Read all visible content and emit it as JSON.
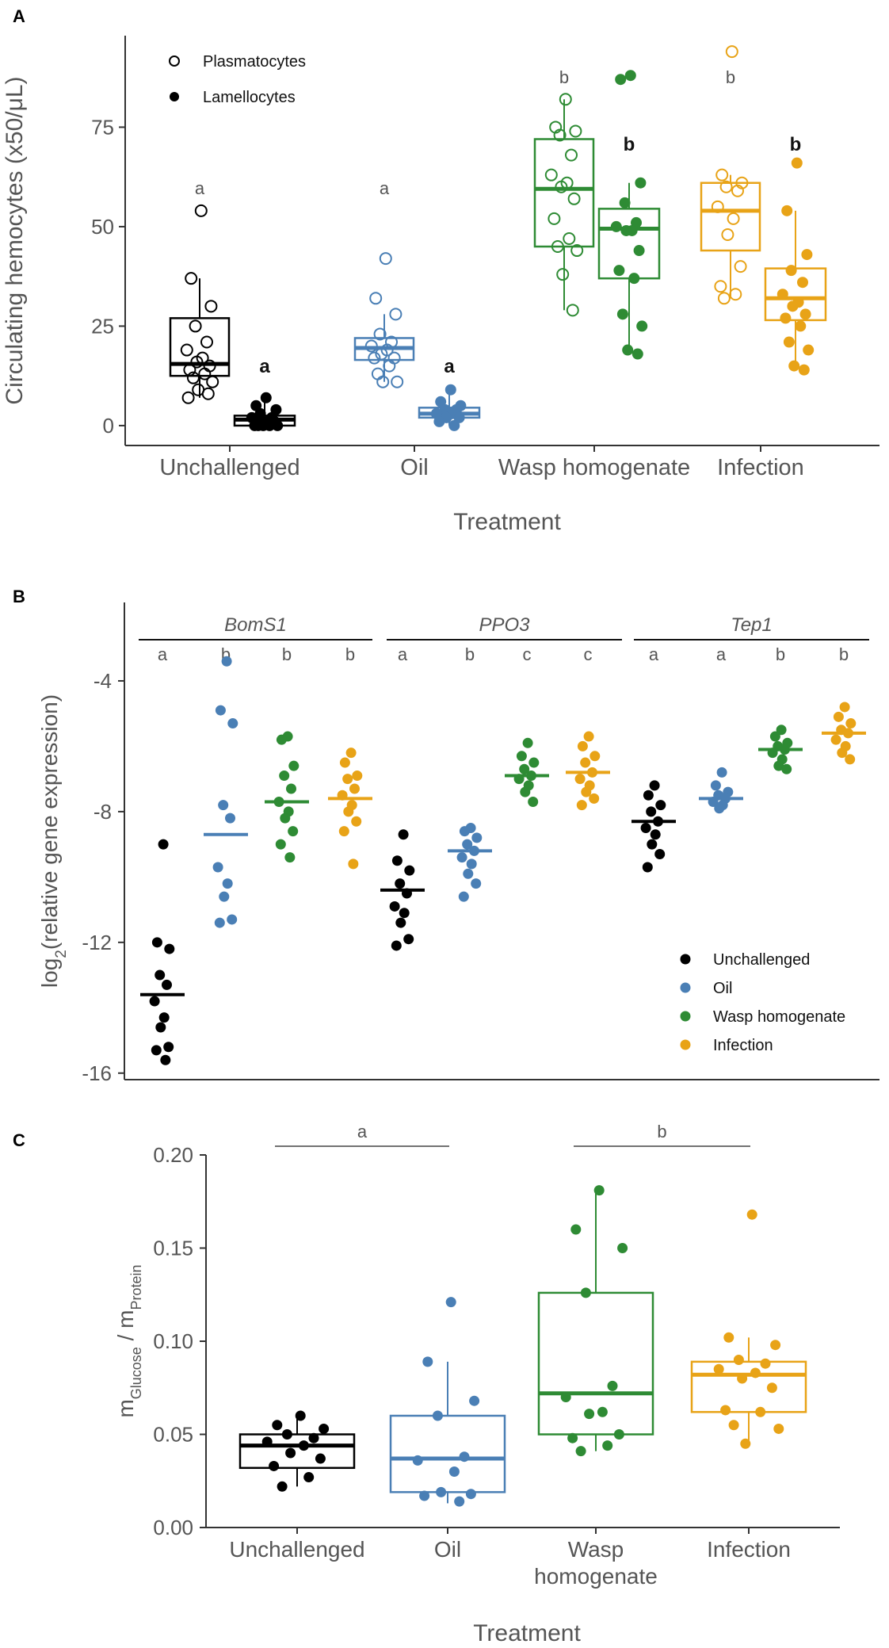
{
  "figure": {
    "panel_labels": [
      "A",
      "B",
      "C"
    ]
  },
  "colors": {
    "Unchallenged": "#000000",
    "Oil": "#4a7fb5",
    "Wasp homogenate": "#2e8b34",
    "Infection": "#e8a317"
  },
  "chart_data": [
    {
      "panel": "A",
      "type": "box",
      "ylabel": "Circulating hemocytes (x50/μL)",
      "xlabel": "Treatment",
      "ylim": [
        -5,
        98
      ],
      "yticks": [
        0,
        25,
        50,
        75
      ],
      "categories": [
        "Unchallenged",
        "Oil",
        "Wasp homogenate",
        "Infection"
      ],
      "legend": {
        "position": "top-left",
        "entries": [
          "Plasmatocytes",
          "Lamellocytes"
        ]
      },
      "series": [
        {
          "name": "Plasmatocytes",
          "marker": "open-circle",
          "groups": [
            {
              "category": "Unchallenged",
              "q1": 12.5,
              "median": 15.5,
              "q3": 27,
              "whisker_low": 7,
              "whisker_high": 37,
              "letter": "a",
              "points": [
                54,
                37,
                30,
                25,
                21,
                19,
                17,
                16,
                15,
                14,
                13,
                12,
                11,
                9,
                8,
                7
              ]
            },
            {
              "category": "Oil",
              "q1": 16.5,
              "median": 19.5,
              "q3": 22,
              "whisker_low": 11,
              "whisker_high": 28,
              "letter": "a",
              "points": [
                42,
                32,
                28,
                23,
                21,
                20,
                19,
                18,
                17,
                17,
                15,
                13,
                11,
                11
              ]
            },
            {
              "category": "Wasp homogenate",
              "q1": 45,
              "median": 59.5,
              "q3": 72,
              "whisker_low": 29,
              "whisker_high": 82,
              "letter": "b",
              "points": [
                82,
                75,
                74,
                73,
                68,
                63,
                61,
                60,
                57,
                52,
                47,
                45,
                44,
                38,
                29
              ]
            },
            {
              "category": "Infection",
              "q1": 44,
              "median": 54,
              "q3": 61,
              "whisker_low": 32,
              "whisker_high": 63,
              "letter": "b",
              "points": [
                94,
                63,
                61,
                60,
                59,
                55,
                52,
                48,
                40,
                35,
                33,
                32
              ]
            }
          ]
        },
        {
          "name": "Lamellocytes",
          "marker": "filled-circle",
          "groups": [
            {
              "category": "Unchallenged",
              "q1": 0,
              "median": 1.5,
              "q3": 2.5,
              "whisker_low": 0,
              "whisker_high": 7,
              "letter": "a",
              "points": [
                7,
                5,
                4,
                3,
                2,
                2,
                1,
                1,
                1,
                0,
                0,
                0,
                0,
                0
              ]
            },
            {
              "category": "Oil",
              "q1": 2,
              "median": 3,
              "q3": 4.5,
              "whisker_low": 0,
              "whisker_high": 9,
              "letter": "a",
              "points": [
                9,
                6,
                5,
                4,
                4,
                3,
                3,
                2,
                2,
                1,
                0
              ]
            },
            {
              "category": "Wasp homogenate",
              "q1": 37,
              "median": 49.5,
              "q3": 54.5,
              "whisker_low": 18,
              "whisker_high": 61,
              "letter": "b",
              "points": [
                88,
                87,
                61,
                56,
                51,
                50,
                49,
                49,
                44,
                39,
                37,
                28,
                25,
                19,
                18
              ]
            },
            {
              "category": "Infection",
              "q1": 26.5,
              "median": 32,
              "q3": 39.5,
              "whisker_low": 14,
              "whisker_high": 54,
              "letter": "b",
              "points": [
                66,
                54,
                43,
                39,
                36,
                33,
                31,
                30,
                28,
                27,
                25,
                21,
                19,
                15,
                14
              ]
            }
          ]
        }
      ]
    },
    {
      "panel": "B",
      "type": "scatter",
      "ylabel_main": "log",
      "ylabel_sub": "2",
      "ylabel_rest": "(relative gene expression)",
      "ylim": [
        -16.2,
        -1.6
      ],
      "yticks": [
        -4,
        -8,
        -12,
        -16
      ],
      "genes": [
        "BomS1",
        "PPO3",
        "Tep1"
      ],
      "legend": {
        "position": "bottom-right",
        "entries": [
          "Unchallenged",
          "Oil",
          "Wasp homogenate",
          "Infection"
        ]
      },
      "groups": [
        {
          "gene": "BomS1",
          "treatment": "Unchallenged",
          "mean": -13.6,
          "letter": "a",
          "points": [
            -9.0,
            -12.0,
            -12.2,
            -13.0,
            -13.3,
            -13.8,
            -14.3,
            -14.6,
            -15.2,
            -15.3,
            -15.6
          ]
        },
        {
          "gene": "BomS1",
          "treatment": "Oil",
          "mean": -8.7,
          "letter": "b",
          "points": [
            -3.4,
            -4.9,
            -5.3,
            -7.8,
            -8.2,
            -9.7,
            -10.2,
            -10.6,
            -11.3,
            -11.4
          ]
        },
        {
          "gene": "BomS1",
          "treatment": "Wasp homogenate",
          "mean": -7.7,
          "letter": "b",
          "points": [
            -5.7,
            -5.8,
            -6.6,
            -6.9,
            -7.3,
            -7.7,
            -8.0,
            -8.2,
            -8.6,
            -9.0,
            -9.4
          ]
        },
        {
          "gene": "BomS1",
          "treatment": "Infection",
          "mean": -7.6,
          "letter": "b",
          "points": [
            -6.2,
            -6.5,
            -6.9,
            -7.0,
            -7.3,
            -7.5,
            -7.8,
            -8.0,
            -8.3,
            -8.6,
            -9.6
          ]
        },
        {
          "gene": "PPO3",
          "treatment": "Unchallenged",
          "mean": -10.4,
          "letter": "a",
          "points": [
            -8.7,
            -9.5,
            -9.8,
            -10.2,
            -10.5,
            -10.9,
            -11.1,
            -11.4,
            -11.9,
            -12.1
          ]
        },
        {
          "gene": "PPO3",
          "treatment": "Oil",
          "mean": -9.2,
          "letter": "b",
          "points": [
            -8.5,
            -8.6,
            -8.8,
            -9.0,
            -9.2,
            -9.4,
            -9.6,
            -9.9,
            -10.2,
            -10.6
          ]
        },
        {
          "gene": "PPO3",
          "treatment": "Wasp homogenate",
          "mean": -6.9,
          "letter": "c",
          "points": [
            -5.9,
            -6.3,
            -6.5,
            -6.7,
            -6.9,
            -7.0,
            -7.2,
            -7.4,
            -7.7
          ]
        },
        {
          "gene": "PPO3",
          "treatment": "Infection",
          "mean": -6.8,
          "letter": "c",
          "points": [
            -5.7,
            -6.0,
            -6.3,
            -6.5,
            -6.8,
            -7.0,
            -7.2,
            -7.4,
            -7.6,
            -7.8
          ]
        },
        {
          "gene": "Tep1",
          "treatment": "Unchallenged",
          "mean": -8.3,
          "letter": "a",
          "points": [
            -7.2,
            -7.5,
            -7.8,
            -8.0,
            -8.3,
            -8.5,
            -8.7,
            -9.0,
            -9.3,
            -9.7
          ]
        },
        {
          "gene": "Tep1",
          "treatment": "Oil",
          "mean": -7.6,
          "letter": "a",
          "points": [
            -6.8,
            -7.2,
            -7.4,
            -7.5,
            -7.6,
            -7.7,
            -7.8,
            -7.9
          ]
        },
        {
          "gene": "Tep1",
          "treatment": "Wasp homogenate",
          "mean": -6.1,
          "letter": "b",
          "points": [
            -5.5,
            -5.7,
            -5.9,
            -6.0,
            -6.1,
            -6.2,
            -6.4,
            -6.6,
            -6.7
          ]
        },
        {
          "gene": "Tep1",
          "treatment": "Infection",
          "mean": -5.6,
          "letter": "b",
          "points": [
            -4.8,
            -5.1,
            -5.3,
            -5.5,
            -5.6,
            -5.8,
            -6.0,
            -6.2,
            -6.4
          ]
        }
      ]
    },
    {
      "panel": "C",
      "type": "box",
      "ylabel_main": "m",
      "ylabel_sub1": "Glucose",
      "ylabel_mid": " / m",
      "ylabel_sub2": "Protein",
      "xlabel": "Treatment",
      "ylim": [
        0,
        0.2
      ],
      "yticks": [
        "0.00",
        "0.05",
        "0.10",
        "0.15",
        "0.20"
      ],
      "categories": [
        {
          "label1": "Unchallenged",
          "label2": ""
        },
        {
          "label1": "Oil",
          "label2": ""
        },
        {
          "label1": "Wasp",
          "label2": "homogenate"
        },
        {
          "label1": "Infection",
          "label2": ""
        }
      ],
      "brackets": [
        {
          "from": 0,
          "to": 1,
          "letter": "a"
        },
        {
          "from": 2,
          "to": 3,
          "letter": "b"
        }
      ],
      "groups": [
        {
          "category": "Unchallenged",
          "q1": 0.032,
          "median": 0.044,
          "q3": 0.05,
          "whisker_low": 0.022,
          "whisker_high": 0.06,
          "points": [
            0.06,
            0.055,
            0.053,
            0.05,
            0.048,
            0.046,
            0.044,
            0.04,
            0.037,
            0.033,
            0.027,
            0.022
          ]
        },
        {
          "category": "Oil",
          "q1": 0.019,
          "median": 0.037,
          "q3": 0.06,
          "whisker_low": 0.013,
          "whisker_high": 0.089,
          "points": [
            0.121,
            0.089,
            0.068,
            0.06,
            0.038,
            0.036,
            0.03,
            0.019,
            0.018,
            0.017,
            0.014
          ]
        },
        {
          "category": "Wasp homogenate",
          "q1": 0.05,
          "median": 0.072,
          "q3": 0.126,
          "whisker_low": 0.041,
          "whisker_high": 0.18,
          "points": [
            0.181,
            0.16,
            0.15,
            0.126,
            0.076,
            0.07,
            0.062,
            0.061,
            0.05,
            0.048,
            0.044,
            0.041
          ]
        },
        {
          "category": "Infection",
          "q1": 0.062,
          "median": 0.082,
          "q3": 0.089,
          "whisker_low": 0.045,
          "whisker_high": 0.102,
          "points": [
            0.168,
            0.102,
            0.098,
            0.09,
            0.088,
            0.085,
            0.083,
            0.08,
            0.075,
            0.063,
            0.062,
            0.055,
            0.053,
            0.045
          ]
        }
      ]
    }
  ]
}
